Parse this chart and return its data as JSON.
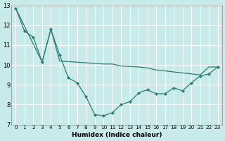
{
  "xlabel": "Humidex (Indice chaleur)",
  "x_line1": [
    0,
    1,
    2,
    3,
    4,
    5,
    6,
    7,
    8,
    9,
    10,
    11,
    12,
    13,
    14,
    15,
    16,
    17,
    18,
    19,
    20,
    21,
    22,
    23
  ],
  "y_line1": [
    12.85,
    11.7,
    11.4,
    10.15,
    11.8,
    10.5,
    9.35,
    9.1,
    8.4,
    7.5,
    7.45,
    7.6,
    8.0,
    8.15,
    8.6,
    8.75,
    8.55,
    8.55,
    8.85,
    8.7,
    9.1,
    9.45,
    9.55,
    9.9
  ],
  "x_line2": [
    0,
    3,
    4,
    5,
    10,
    11,
    12,
    14,
    15,
    16,
    17,
    18,
    19,
    20,
    21,
    22,
    23
  ],
  "y_line2": [
    12.85,
    10.15,
    11.8,
    10.2,
    10.05,
    10.05,
    9.95,
    9.9,
    9.85,
    9.75,
    9.7,
    9.65,
    9.6,
    9.55,
    9.5,
    9.9,
    9.9
  ],
  "line_color": "#2d7d74",
  "bg_color": "#c8eaea",
  "grid_color": "#ffffff",
  "ylim": [
    7,
    13
  ],
  "xlim": [
    -0.5,
    23.5
  ],
  "yticks": [
    7,
    8,
    9,
    10,
    11,
    12,
    13
  ],
  "xticks": [
    0,
    1,
    2,
    3,
    4,
    5,
    6,
    7,
    8,
    9,
    10,
    11,
    12,
    13,
    14,
    15,
    16,
    17,
    18,
    19,
    20,
    21,
    22,
    23
  ]
}
